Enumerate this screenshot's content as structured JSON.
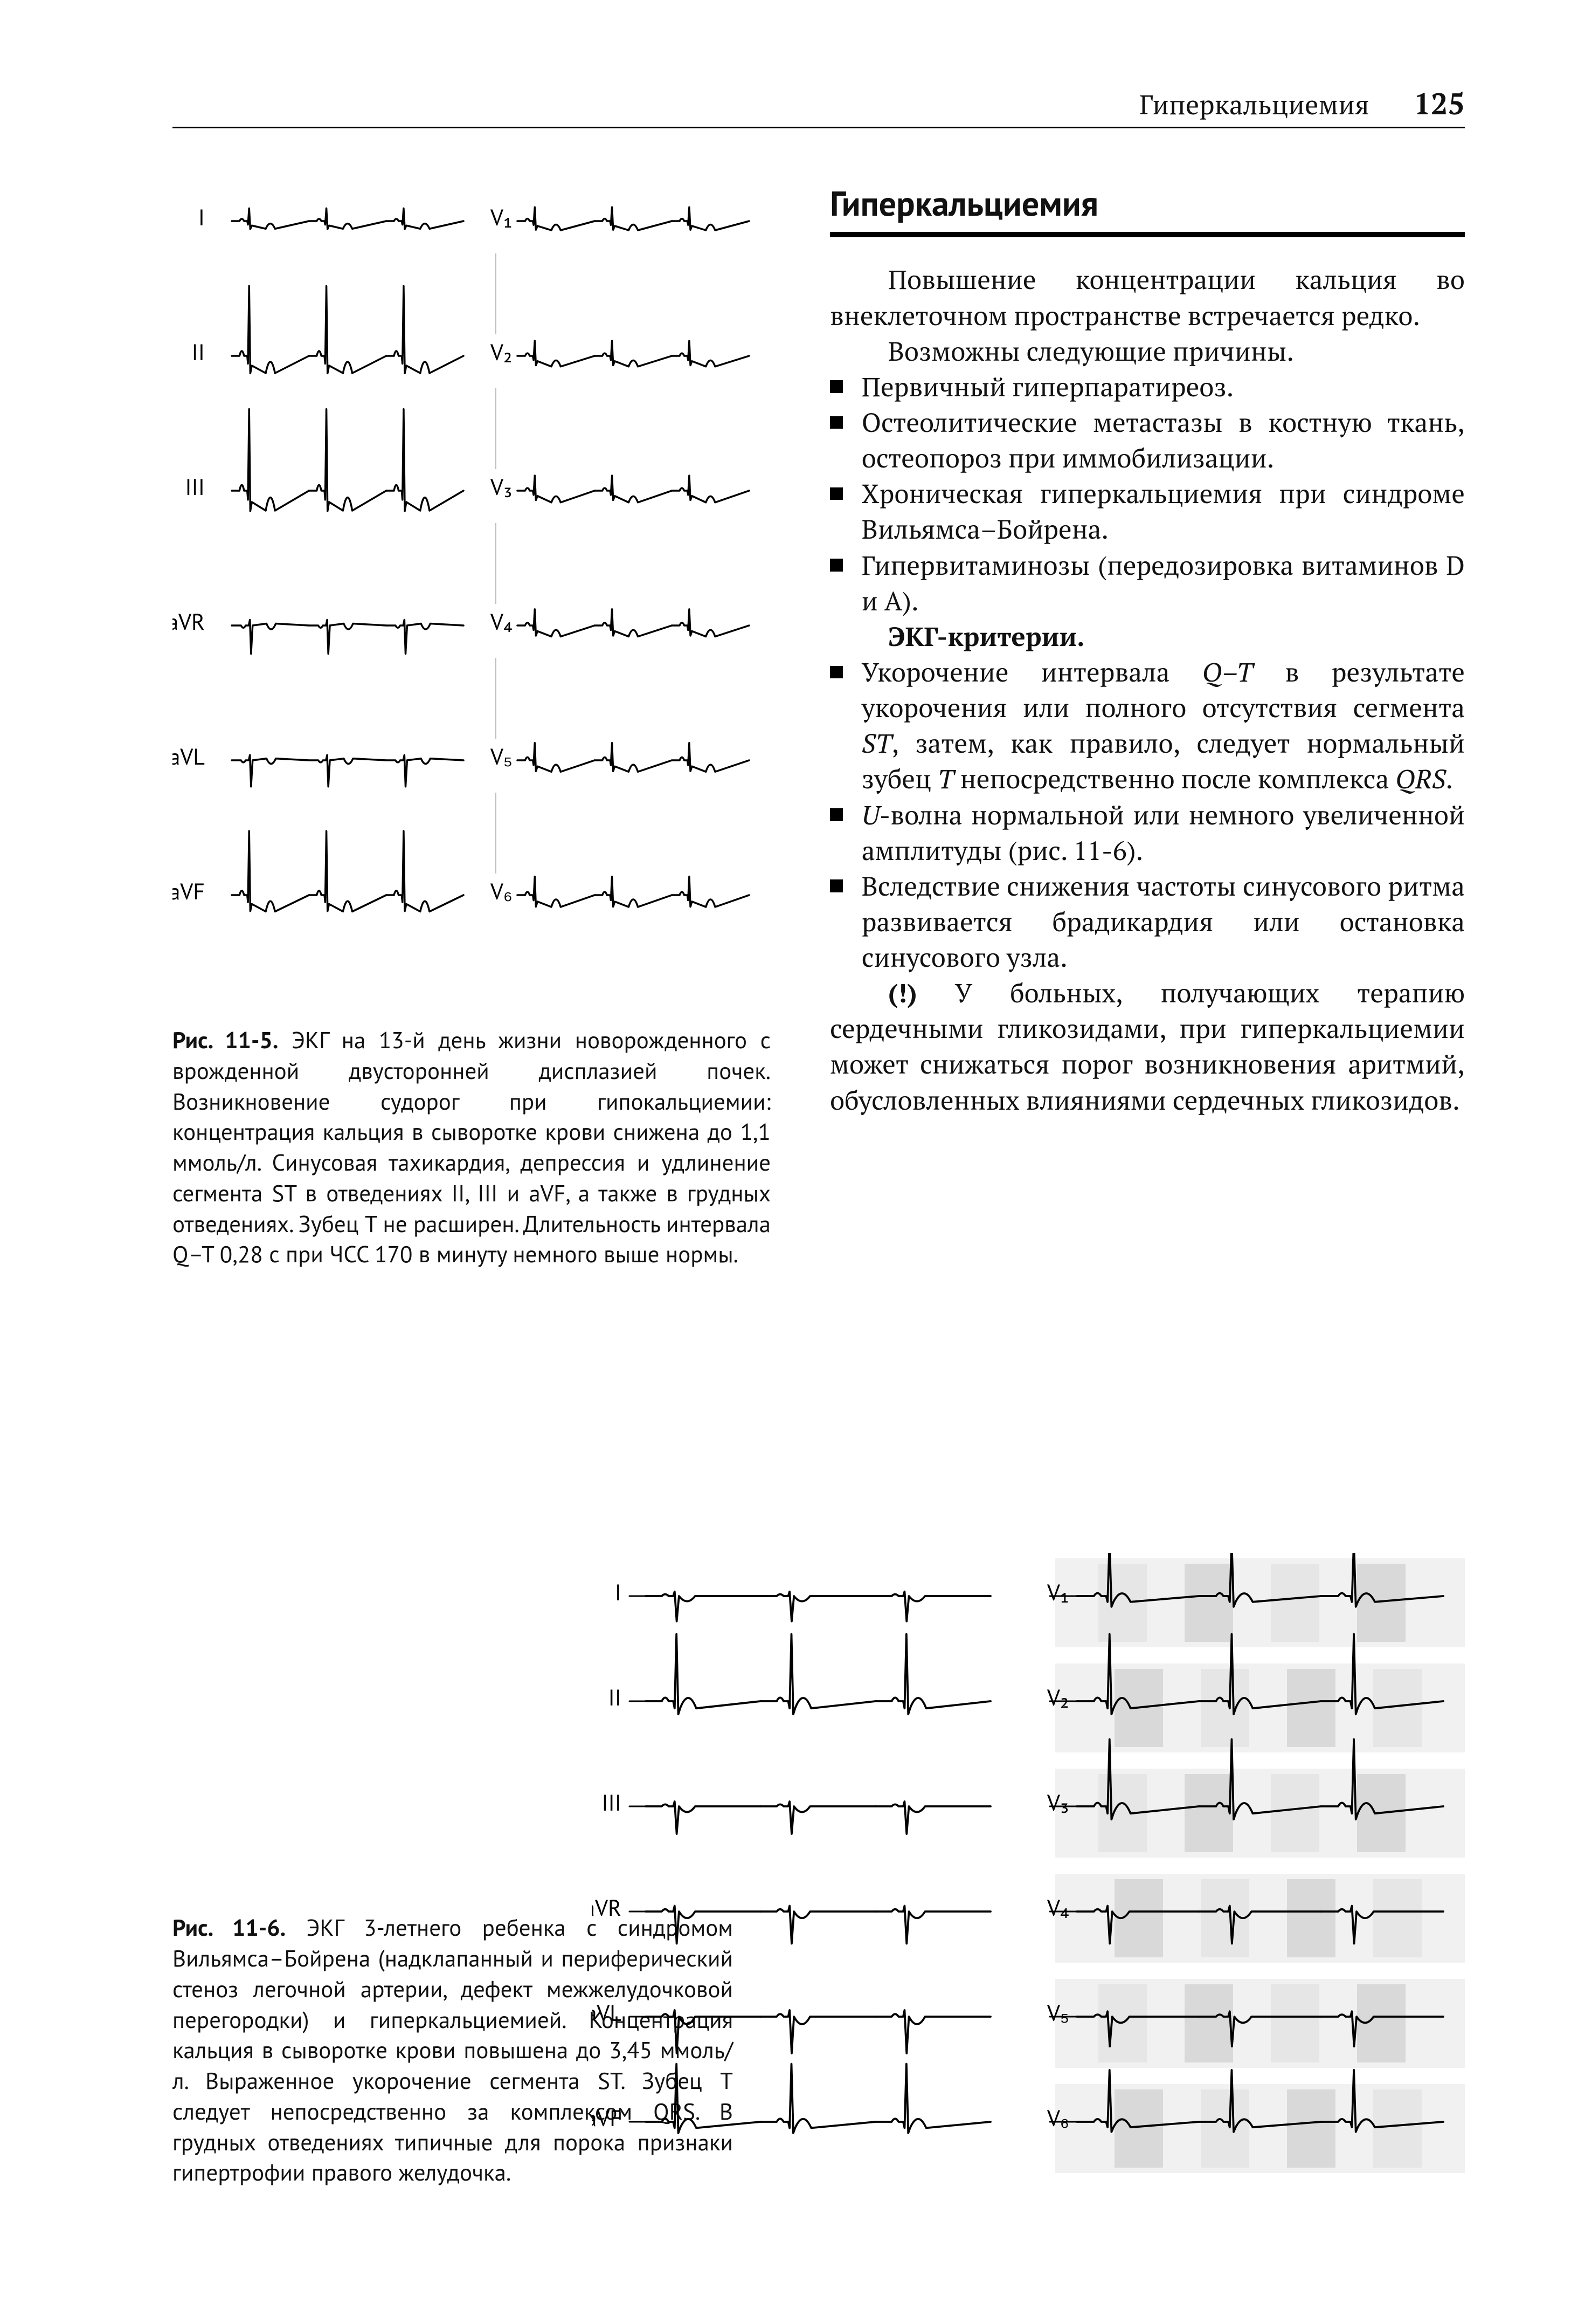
{
  "runningHead": {
    "section": "Гиперкальциемия",
    "page": "125"
  },
  "fig1": {
    "leadsLeft": [
      "I",
      "II",
      "III",
      "aVR",
      "aVL",
      "aVF"
    ],
    "leadsRight": [
      "V₁",
      "V₂",
      "V₃",
      "V₄",
      "V₅",
      "V₆"
    ]
  },
  "caption1": {
    "no": "Рис. 11-5.",
    "text": "ЭКГ на 13-й день жизни новорожденного с врожденной двусторонней дисплазией почек. Возникновение судорог при гипокальциемии: концентрация кальция в сыворотке крови снижена до 1,1 ммоль/л. Синусовая тахикардия, депрессия и удлинение сегмента ST в отведениях II, III и aVF, а также в грудных отведениях. Зубец T не расширен. Длительность интервала Q–T 0,28 с при ЧСС 170 в минуту немного выше нормы."
  },
  "section": {
    "title": "Гиперкальциемия",
    "intro1": "Повышение концентрации кальция во внеклеточном пространстве встречается редко.",
    "intro2": "Возможны следующие причины.",
    "causes": [
      "Первичный гиперпаратиреоз.",
      "Остеолитические метастазы в костную ткань, остеопороз при иммобилизации.",
      "Хроническая гиперкальциемия при синдроме Вильямса–Бойрена.",
      "Гипервитаминозы (передозировка витаминов D и A)."
    ],
    "criteriaHead": "ЭКГ-критерии.",
    "criteria": [
      "Укорочение интервала <span class=\"it\">Q–T</span> в результате укорочения или полного отсутствия сегмента <span class=\"it\">ST</span>, затем, как правило, следует нормальный зубец <span class=\"it\">T</span> непосредственно после комплекса <span class=\"it\">QRS</span>.",
      "<span class=\"it\">U</span>-волна нормальной или немного увеличенной амплитуды (рис. 11-6).",
      "Вследствие снижения частоты синусового ритма развивается брадикардия или остановка синусового узла."
    ],
    "note": "<span class=\"bold\">(!)</span> У больных, получающих терапию сердечными гликозидами, при гиперкальциемии может снижаться порог возникновения аритмий, обусловленных влияниями сердечных гликозидов."
  },
  "caption2": {
    "no": "Рис. 11-6.",
    "text": "ЭКГ 3-летнего ребенка с синдромом Вильямса–Бойрена (надклапанный и периферический стеноз легочной артерии, дефект межжелудочковой перегородки) и гиперкальциемией. Концентрация кальция в сыворотке крови повышена до 3,45 ммоль/л. Выраженное укорочение сегмента ST. Зубец T следует непосредственно за комплексом QRS. В грудных отведениях типичные для порока признаки гипертрофии правого желудочка."
  },
  "fig2": {
    "leadsLeft": [
      "I",
      "II",
      "III",
      "aVR",
      "aVL",
      "aVF"
    ],
    "leadsRight": [
      "V₁",
      "V₂",
      "V₃",
      "V₄",
      "V₅",
      "V₆"
    ]
  },
  "style": {
    "stroke": "#000000",
    "strokeWidth": 3.5,
    "gridColor": "#b9b9b9"
  }
}
